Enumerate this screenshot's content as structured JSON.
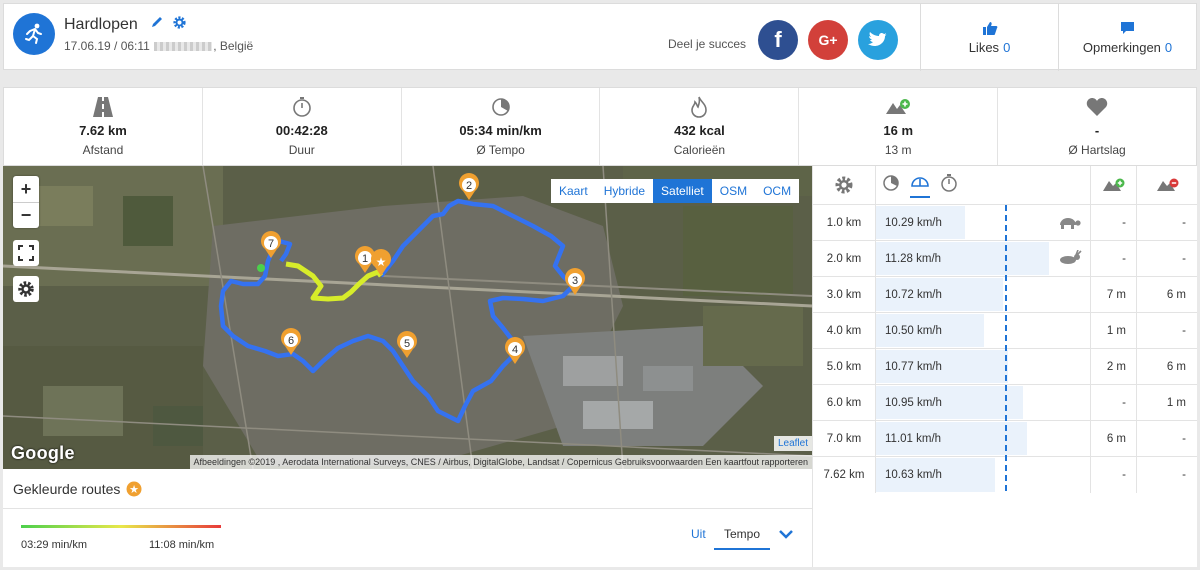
{
  "header": {
    "title": "Hardlopen",
    "date": "17.06.19 / 06:11",
    "country": ", België",
    "share_label": "Deel je succes",
    "likes_label": "Likes",
    "likes_count": "0",
    "comments_label": "Opmerkingen",
    "comments_count": "0"
  },
  "social": {
    "facebook": "f",
    "google": "G+",
    "twitter": "twitter-icon"
  },
  "stats": [
    {
      "value": "7.62 km",
      "label": "Afstand",
      "icon": "road-icon"
    },
    {
      "value": "00:42:28",
      "label": "Duur",
      "icon": "stopwatch-icon"
    },
    {
      "value": "05:34 min/km",
      "label": "Ø Tempo",
      "icon": "pace-icon"
    },
    {
      "value": "432 kcal",
      "label": "Calorieën",
      "icon": "flame-icon"
    },
    {
      "value": "16 m",
      "label": "13 m",
      "icon": "elevation-icon"
    },
    {
      "value": "-",
      "label": "Ø Hartslag",
      "icon": "heart-icon"
    }
  ],
  "map": {
    "zoom_in": "+",
    "zoom_out": "−",
    "layers": [
      "Kaart",
      "Hybride",
      "Satelliet",
      "OSM",
      "OCM"
    ],
    "active_layer": "Satelliet",
    "google": "Google",
    "leaflet": "Leaflet",
    "attribution": "Afbeeldingen ©2019 , Aerodata International Surveys, CNES / Airbus, DigitalGlobe, Landsat / Copernicus    Gebruiksvoorwaarden    Een kaartfout rapporteren",
    "markers": [
      "1",
      "2",
      "3",
      "4",
      "5",
      "6",
      "7"
    ]
  },
  "routes": {
    "title": "Gekleurde routes",
    "min_label": "03:29 min/km",
    "max_label": "11:08 min/km",
    "off_label": "Uit",
    "tempo_label": "Tempo"
  },
  "splits": [
    {
      "km": "1.0 km",
      "speed": "10.29 km/h",
      "up": "-",
      "down": "-",
      "fill": 0.41,
      "badge": "turtle"
    },
    {
      "km": "2.0 km",
      "speed": "11.28 km/h",
      "up": "-",
      "down": "-",
      "fill": 0.8,
      "badge": "rabbit"
    },
    {
      "km": "3.0 km",
      "speed": "10.72 km/h",
      "up": "7 m",
      "down": "6 m",
      "fill": 0.59
    },
    {
      "km": "4.0 km",
      "speed": "10.50 km/h",
      "up": "1 m",
      "down": "-",
      "fill": 0.5
    },
    {
      "km": "5.0 km",
      "speed": "10.77 km/h",
      "up": "2 m",
      "down": "6 m",
      "fill": 0.61
    },
    {
      "km": "6.0 km",
      "speed": "10.95 km/h",
      "up": "-",
      "down": "1 m",
      "fill": 0.68
    },
    {
      "km": "7.0 km",
      "speed": "11.01 km/h",
      "up": "6 m",
      "down": "-",
      "fill": 0.7
    },
    {
      "km": "7.62 km",
      "speed": "10.63 km/h",
      "up": "-",
      "down": "-",
      "fill": 0.55
    }
  ],
  "colors": {
    "accent": "#1f74d6",
    "route": "#3572f0",
    "route_highlight": "#d7ec2a"
  }
}
